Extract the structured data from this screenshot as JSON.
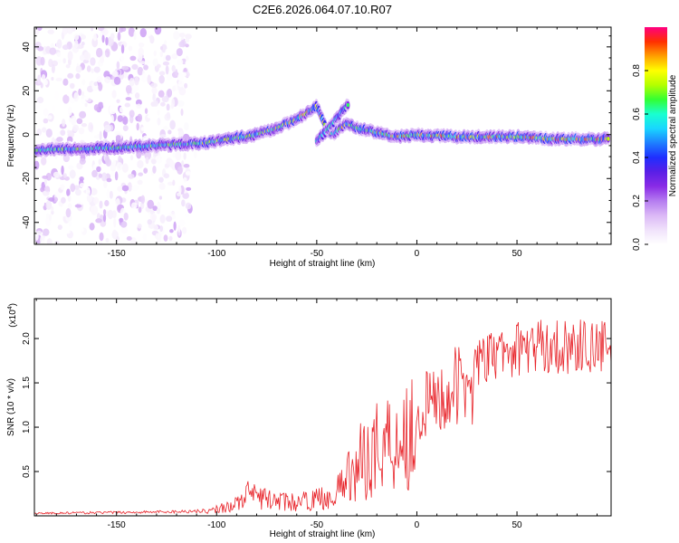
{
  "title": "C2E6.2026.064.07.10.R07",
  "chart_data": [
    {
      "type": "heatmap",
      "title": "",
      "xlabel": "Height of straight line (km)",
      "ylabel": "Frequency (Hz)",
      "xlim": [
        -191,
        97
      ],
      "ylim": [
        -50,
        49
      ],
      "xticks": [
        -150,
        -100,
        -50,
        0,
        50
      ],
      "yticks": [
        -40,
        -20,
        0,
        20,
        40
      ],
      "noise_region_x": [
        -190,
        -114
      ],
      "ridge": {
        "x": [
          -190,
          -150,
          -130,
          -110,
          -100,
          -80,
          -70,
          -60,
          -50,
          -45,
          -42,
          -35,
          -30,
          -20,
          -10,
          0,
          20,
          50,
          70,
          97
        ],
        "y": [
          -7,
          -6,
          -5,
          -4,
          -3,
          0,
          3,
          7,
          13,
          2,
          0,
          5,
          3,
          1,
          -1,
          0,
          -1,
          -1,
          -2,
          -2
        ]
      },
      "branch": {
        "x": [
          -50,
          -43,
          -38,
          -34
        ],
        "y": [
          -3,
          4,
          10,
          14
        ]
      }
    },
    {
      "type": "line",
      "title": "",
      "xlabel": "Height of straight line (km)",
      "ylabel": "SNR (10 * v/v)",
      "ylabel_exponent": "(x10",
      "exponent_power": "4",
      "exponent_close": ")",
      "xlim": [
        -191,
        97
      ],
      "ylim": [
        0,
        2.45
      ],
      "xticks": [
        -150,
        -100,
        -50,
        0,
        50
      ],
      "yticks": [
        0.5,
        1.0,
        1.5,
        2.0
      ],
      "series": [
        {
          "name": "SNR",
          "color": "#e8242a",
          "envelope_x": [
            -191,
            -150,
            -120,
            -105,
            -100,
            -90,
            -85,
            -80,
            -70,
            -60,
            -50,
            -40,
            -35,
            -30,
            -25,
            -20,
            -15,
            -10,
            -5,
            0,
            10,
            20,
            30,
            40,
            50,
            60,
            70,
            80,
            97
          ],
          "envelope_y": [
            0.03,
            0.04,
            0.05,
            0.06,
            0.1,
            0.18,
            0.32,
            0.28,
            0.22,
            0.2,
            0.25,
            0.32,
            0.55,
            0.7,
            0.9,
            1.0,
            1.1,
            1.15,
            1.2,
            1.3,
            1.45,
            1.6,
            1.75,
            1.85,
            1.92,
            1.95,
            1.95,
            1.95,
            1.93
          ]
        }
      ]
    }
  ],
  "colorbar": {
    "label": "Normalized spectral amplitude",
    "ticks": [
      "0.0",
      "0.2",
      "0.4",
      "0.6",
      "0.8"
    ],
    "tick_values": [
      0.0,
      0.2,
      0.4,
      0.6,
      0.8
    ],
    "range": [
      0,
      1
    ],
    "stops": [
      "#ffffff",
      "#f0e2fb",
      "#dbb8f6",
      "#b57cf0",
      "#8a2be6",
      "#5a1fe6",
      "#1f2fff",
      "#1e7fff",
      "#19d6ff",
      "#19ffd0",
      "#33ff33",
      "#b4ff00",
      "#ffff00",
      "#ffa000",
      "#ff3000",
      "#ff0080"
    ]
  }
}
